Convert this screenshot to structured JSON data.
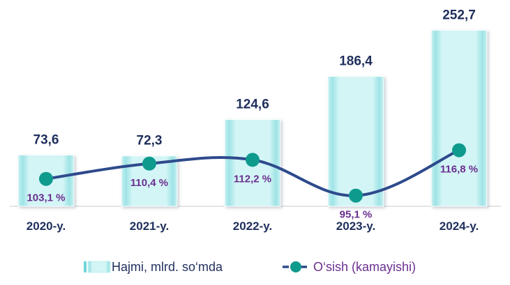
{
  "chart_data": {
    "type": "bar+line",
    "categories": [
      "2020-y.",
      "2021-y.",
      "2022-y.",
      "2023-y.",
      "2024-y."
    ],
    "series": [
      {
        "name": "Hajmi, mlrd. so‘mda",
        "type": "bar",
        "values": [
          73.6,
          72.3,
          124.6,
          186.4,
          252.7
        ],
        "labels": [
          "73,6",
          "72,3",
          "124,6",
          "186,4",
          "252,7"
        ],
        "color": "#b8ecee"
      },
      {
        "name": "O‘sish (kamayishi)",
        "type": "line",
        "values": [
          103.1,
          110.4,
          112.2,
          95.1,
          116.8
        ],
        "labels": [
          "103,1 %",
          "110,4 %",
          "112,2 %",
          "95,1 %",
          "116,8 %"
        ],
        "color": "#2e4a8c",
        "marker_color": "#0f9a8e"
      }
    ],
    "grid": false,
    "legend_position": "bottom"
  },
  "legend": {
    "bar_label": "Hajmi, mlrd. so‘mda",
    "line_label": "O‘sish (kamayishi)"
  }
}
